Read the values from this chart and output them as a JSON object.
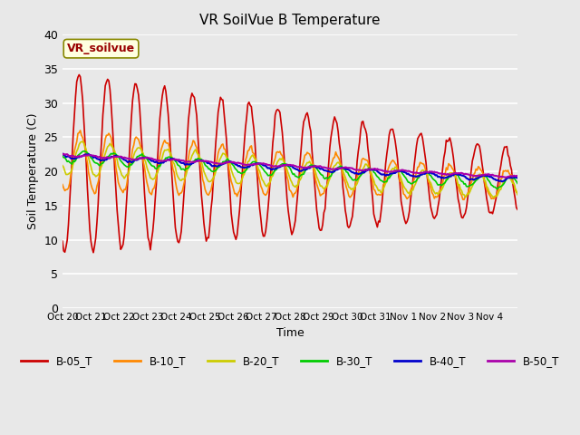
{
  "title": "VR SoilVue B Temperature",
  "xlabel": "Time",
  "ylabel": "Soil Temperature (C)",
  "ylim": [
    0,
    40
  ],
  "yticks": [
    0,
    5,
    10,
    15,
    20,
    25,
    30,
    35,
    40
  ],
  "background_color": "#e8e8e8",
  "legend_label": "VR_soilvue",
  "series_colors": {
    "B-05_T": "#cc0000",
    "B-10_T": "#ff8800",
    "B-20_T": "#cccc00",
    "B-30_T": "#00cc00",
    "B-40_T": "#0000cc",
    "B-50_T": "#aa00aa"
  },
  "x_tick_positions": [
    0,
    1,
    2,
    3,
    4,
    5,
    6,
    7,
    8,
    9,
    10,
    11,
    12,
    13,
    14,
    15,
    16
  ],
  "x_tick_labels": [
    "Oct 20",
    "Oct 21",
    "Oct 22",
    "Oct 23",
    "Oct 24",
    "Oct 25",
    "Oct 26",
    "Oct 27",
    "Oct 28",
    "Oct 29",
    "Oct 30",
    "Oct 31",
    "Nov 1",
    "Nov 2",
    "Nov 3",
    "Nov 4",
    ""
  ]
}
